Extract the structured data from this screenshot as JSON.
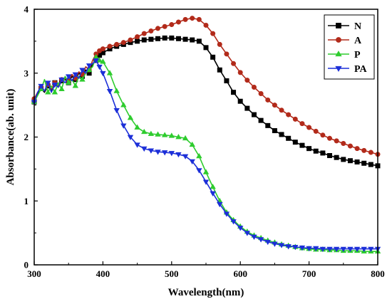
{
  "chart_data": {
    "type": "line",
    "title": "",
    "xlabel": "Wavelength(nm)",
    "ylabel": "Absorbance(ab. unit)",
    "xlim": [
      300,
      800
    ],
    "ylim": [
      0,
      4
    ],
    "x_ticks": [
      "300",
      "400",
      "500",
      "600",
      "700",
      "800"
    ],
    "y_ticks": [
      "0",
      "1",
      "2",
      "3",
      "4"
    ],
    "x_tick_values": [
      300,
      400,
      500,
      600,
      700,
      800
    ],
    "y_tick_values": [
      0,
      1,
      2,
      3,
      4
    ],
    "grid": false,
    "legend_position": "top-right",
    "x": [
      300,
      305,
      310,
      315,
      320,
      325,
      330,
      335,
      340,
      345,
      350,
      355,
      360,
      365,
      370,
      375,
      380,
      385,
      390,
      395,
      400,
      410,
      420,
      430,
      440,
      450,
      460,
      470,
      480,
      490,
      500,
      510,
      520,
      530,
      540,
      550,
      560,
      570,
      580,
      590,
      600,
      610,
      620,
      630,
      640,
      650,
      660,
      670,
      680,
      690,
      700,
      710,
      720,
      730,
      740,
      750,
      760,
      770,
      780,
      790,
      800
    ],
    "series": [
      {
        "name": "N",
        "color": "#000000",
        "marker": "square",
        "values": [
          2.55,
          2.68,
          2.76,
          2.7,
          2.8,
          2.72,
          2.85,
          2.78,
          2.88,
          2.9,
          2.85,
          2.95,
          2.9,
          3.0,
          2.95,
          3.05,
          3.0,
          3.15,
          3.2,
          3.28,
          3.32,
          3.38,
          3.42,
          3.45,
          3.48,
          3.5,
          3.52,
          3.53,
          3.54,
          3.55,
          3.55,
          3.54,
          3.53,
          3.52,
          3.5,
          3.4,
          3.25,
          3.05,
          2.88,
          2.7,
          2.56,
          2.45,
          2.35,
          2.26,
          2.18,
          2.1,
          2.04,
          1.98,
          1.92,
          1.87,
          1.82,
          1.78,
          1.75,
          1.71,
          1.68,
          1.65,
          1.63,
          1.61,
          1.59,
          1.57,
          1.55
        ]
      },
      {
        "name": "A",
        "color": "#b22a1a",
        "marker": "circle",
        "values": [
          2.6,
          2.7,
          2.78,
          2.72,
          2.82,
          2.75,
          2.85,
          2.8,
          2.9,
          2.92,
          2.88,
          2.98,
          2.92,
          3.02,
          2.98,
          3.1,
          3.05,
          3.2,
          3.3,
          3.35,
          3.38,
          3.42,
          3.45,
          3.48,
          3.52,
          3.57,
          3.62,
          3.66,
          3.7,
          3.73,
          3.76,
          3.8,
          3.84,
          3.86,
          3.84,
          3.75,
          3.62,
          3.45,
          3.3,
          3.15,
          3.01,
          2.89,
          2.78,
          2.68,
          2.58,
          2.5,
          2.42,
          2.35,
          2.28,
          2.21,
          2.15,
          2.09,
          2.03,
          1.98,
          1.94,
          1.9,
          1.86,
          1.82,
          1.79,
          1.76,
          1.73
        ]
      },
      {
        "name": "P",
        "color": "#2ecc2e",
        "marker": "triangle-up",
        "values": [
          2.55,
          2.65,
          2.75,
          2.9,
          2.7,
          2.8,
          2.7,
          2.85,
          2.75,
          2.95,
          2.85,
          2.9,
          2.8,
          2.95,
          2.9,
          3.0,
          3.05,
          3.1,
          3.25,
          3.2,
          3.18,
          3.0,
          2.72,
          2.5,
          2.3,
          2.15,
          2.08,
          2.05,
          2.04,
          2.03,
          2.02,
          2.0,
          1.98,
          1.88,
          1.7,
          1.45,
          1.22,
          1.0,
          0.82,
          0.7,
          0.6,
          0.52,
          0.46,
          0.42,
          0.38,
          0.35,
          0.32,
          0.3,
          0.28,
          0.26,
          0.25,
          0.24,
          0.24,
          0.23,
          0.23,
          0.22,
          0.22,
          0.22,
          0.21,
          0.21,
          0.21
        ]
      },
      {
        "name": "PA",
        "color": "#1c2fd8",
        "marker": "triangle-down",
        "values": [
          2.55,
          2.7,
          2.8,
          2.72,
          2.85,
          2.7,
          2.82,
          2.78,
          2.9,
          2.85,
          2.95,
          2.88,
          2.98,
          2.92,
          3.05,
          3.0,
          3.12,
          3.15,
          3.2,
          3.1,
          3.0,
          2.72,
          2.42,
          2.18,
          2.0,
          1.88,
          1.82,
          1.79,
          1.77,
          1.76,
          1.75,
          1.73,
          1.7,
          1.62,
          1.48,
          1.3,
          1.12,
          0.95,
          0.8,
          0.68,
          0.58,
          0.5,
          0.44,
          0.4,
          0.36,
          0.33,
          0.31,
          0.29,
          0.28,
          0.27,
          0.26,
          0.26,
          0.25,
          0.25,
          0.25,
          0.25,
          0.25,
          0.25,
          0.25,
          0.25,
          0.25
        ]
      }
    ]
  }
}
